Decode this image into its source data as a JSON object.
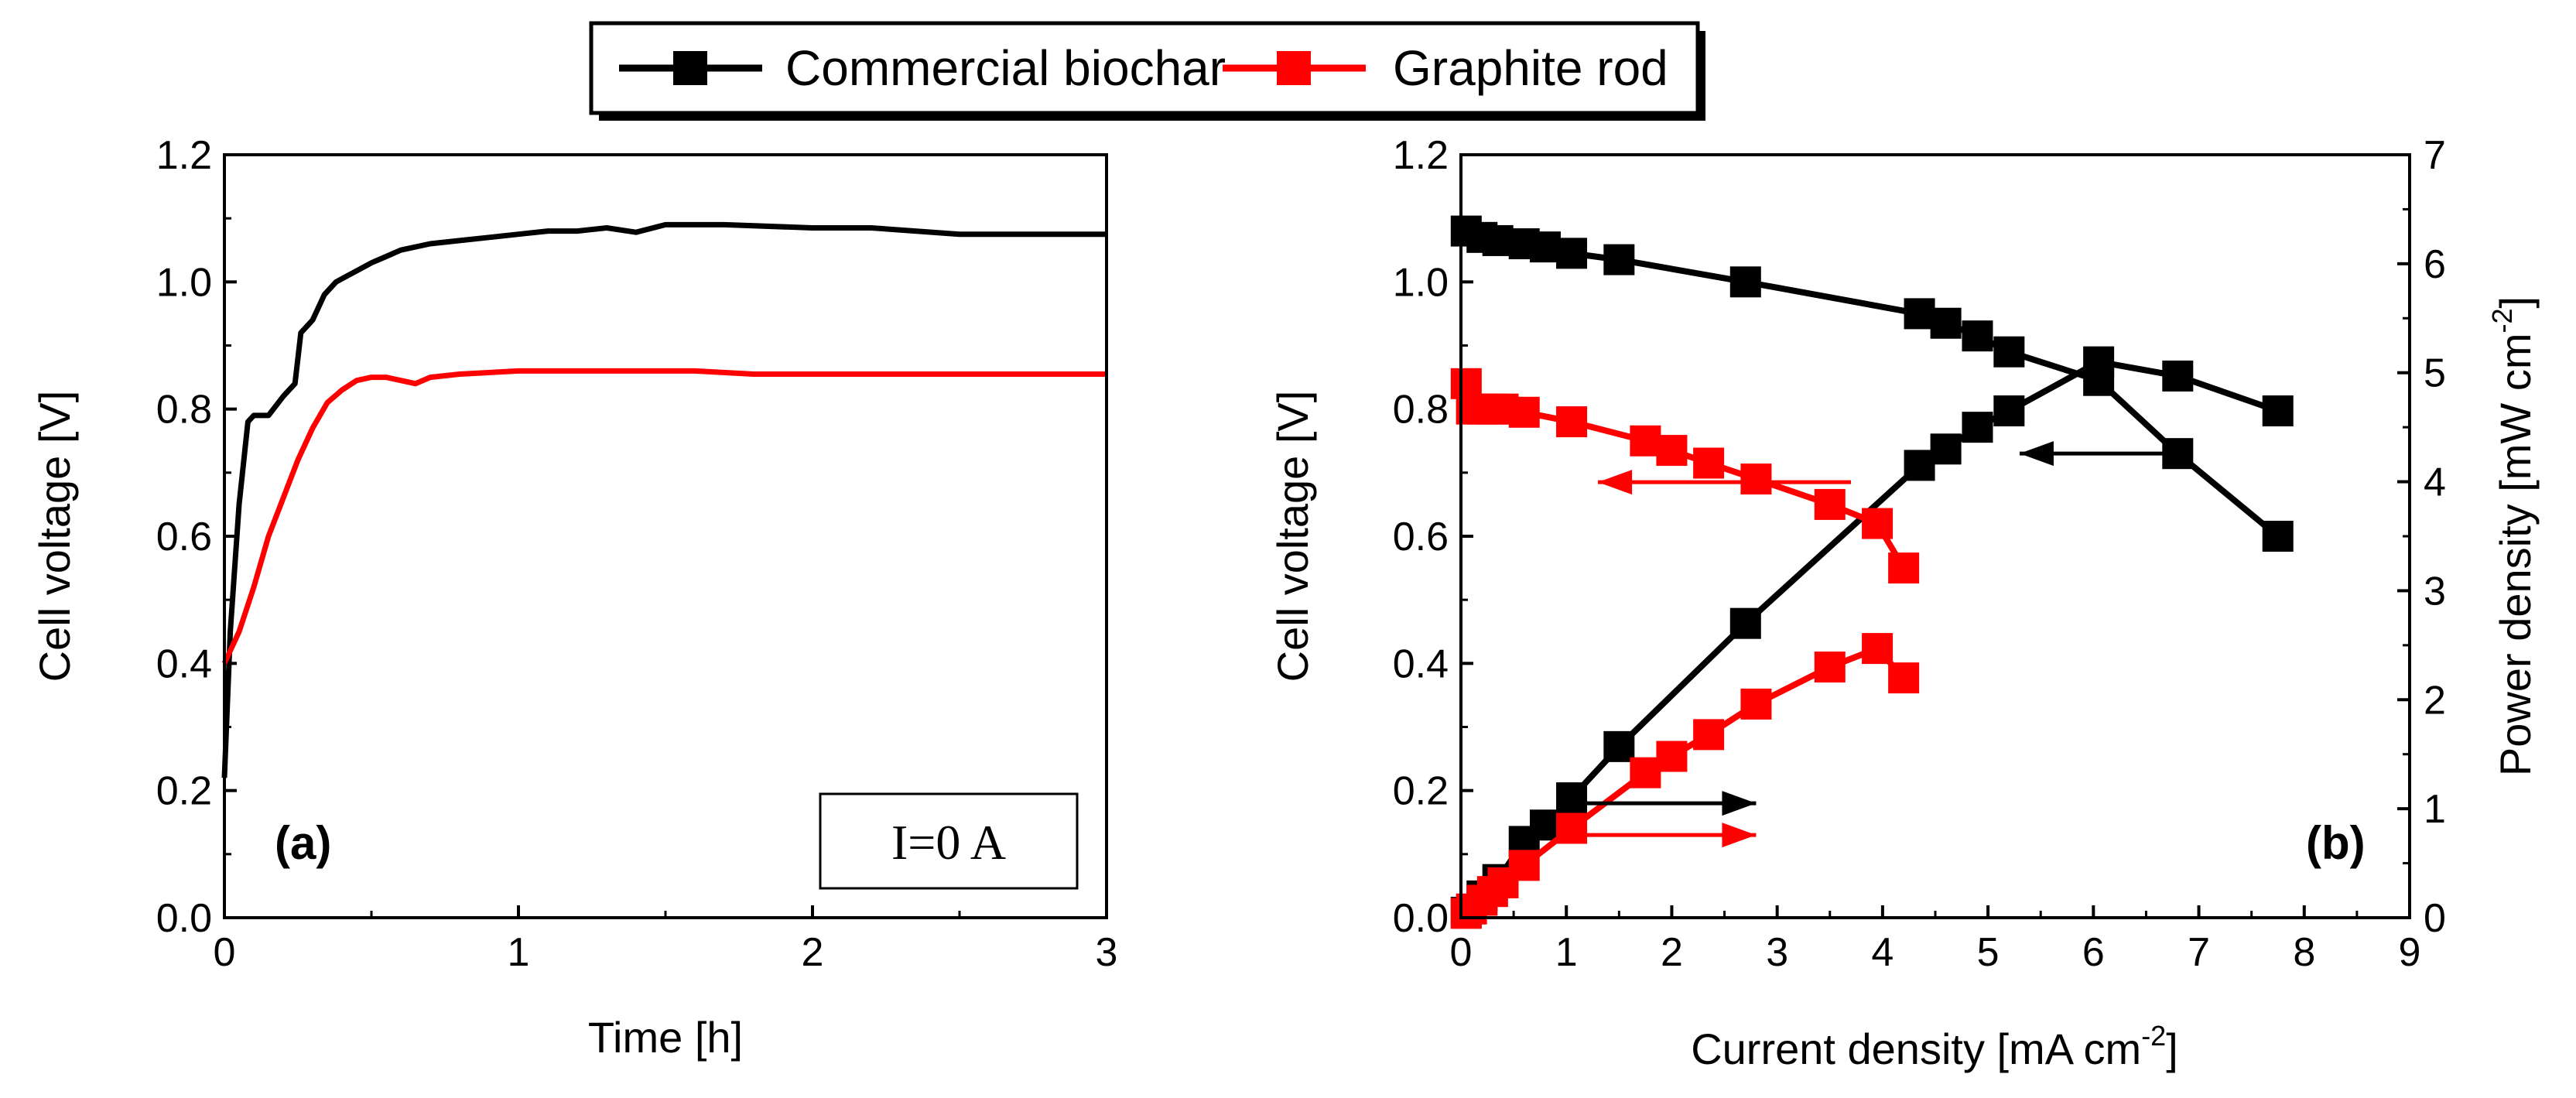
{
  "legend": {
    "entries": [
      {
        "label": "Commercial biochar",
        "color": "#000000"
      },
      {
        "label": "Graphite rod",
        "color": "#ff0000"
      }
    ]
  },
  "chart_data": [
    {
      "type": "line",
      "panel_label": "(a)",
      "annotation": "I=0 A",
      "xlabel": "Time [h]",
      "ylabel": "Cell voltage [V]",
      "xlim": [
        0,
        3
      ],
      "ylim": [
        0,
        1.2
      ],
      "xticks": [
        0,
        1,
        2,
        3
      ],
      "yticks": [
        0.0,
        0.2,
        0.4,
        0.6,
        0.8,
        1.0,
        1.2
      ],
      "series": [
        {
          "legend_index": 0,
          "color": "#000000",
          "x": [
            0,
            0.02,
            0.05,
            0.08,
            0.1,
            0.15,
            0.2,
            0.24,
            0.26,
            0.3,
            0.34,
            0.38,
            0.42,
            0.46,
            0.5,
            0.55,
            0.6,
            0.7,
            0.8,
            0.9,
            1.0,
            1.1,
            1.2,
            1.3,
            1.4,
            1.5,
            1.7,
            2.0,
            2.2,
            2.5,
            3.0
          ],
          "y": [
            0.22,
            0.45,
            0.65,
            0.78,
            0.79,
            0.79,
            0.82,
            0.84,
            0.92,
            0.94,
            0.98,
            1.0,
            1.01,
            1.02,
            1.03,
            1.04,
            1.05,
            1.06,
            1.065,
            1.07,
            1.075,
            1.08,
            1.08,
            1.085,
            1.078,
            1.09,
            1.09,
            1.085,
            1.085,
            1.075,
            1.075
          ]
        },
        {
          "legend_index": 1,
          "color": "#ff0000",
          "x": [
            0,
            0.05,
            0.1,
            0.15,
            0.2,
            0.25,
            0.3,
            0.35,
            0.4,
            0.45,
            0.5,
            0.55,
            0.6,
            0.65,
            0.7,
            0.8,
            1.0,
            1.2,
            1.4,
            1.6,
            1.8,
            2.0,
            2.2,
            2.5,
            2.8,
            3.0
          ],
          "y": [
            0.4,
            0.45,
            0.52,
            0.6,
            0.66,
            0.72,
            0.77,
            0.81,
            0.83,
            0.845,
            0.85,
            0.85,
            0.845,
            0.84,
            0.85,
            0.855,
            0.86,
            0.86,
            0.86,
            0.86,
            0.855,
            0.855,
            0.855,
            0.855,
            0.855,
            0.855
          ]
        }
      ]
    },
    {
      "type": "line",
      "panel_label": "(b)",
      "xlabel": "Current density [mA cm",
      "xlabel_sup": "-2",
      "xlabel_end": "]",
      "ylabel": "Cell voltage [V]",
      "y2label": "Power density [mW cm",
      "y2label_sup": "-2",
      "y2label_end": "]",
      "xlim": [
        0,
        9
      ],
      "ylim": [
        0,
        1.2
      ],
      "y2lim": [
        0,
        7
      ],
      "xticks": [
        0,
        1,
        2,
        3,
        4,
        5,
        6,
        7,
        8,
        9
      ],
      "yticks": [
        0.0,
        0.2,
        0.4,
        0.6,
        0.8,
        1.0,
        1.2
      ],
      "y2ticks": [
        0,
        1,
        2,
        3,
        4,
        5,
        6,
        7
      ],
      "series": [
        {
          "legend_index": 0,
          "color": "#000000",
          "axis": "left",
          "x": [
            0.05,
            0.2,
            0.35,
            0.6,
            0.8,
            1.05,
            1.5,
            2.7,
            4.35,
            4.6,
            4.9,
            5.2,
            6.05,
            6.8,
            7.75
          ],
          "y": [
            1.08,
            1.07,
            1.065,
            1.06,
            1.055,
            1.045,
            1.035,
            1.0,
            0.95,
            0.935,
            0.915,
            0.89,
            0.845,
            0.73,
            0.6
          ]
        },
        {
          "legend_index": 0,
          "color": "#000000",
          "axis": "right",
          "x": [
            0.05,
            0.2,
            0.35,
            0.6,
            0.8,
            1.05,
            1.5,
            2.7,
            4.35,
            4.6,
            4.9,
            5.2,
            6.05,
            6.8,
            7.75
          ],
          "y": [
            0.05,
            0.2,
            0.35,
            0.7,
            0.85,
            1.1,
            1.57,
            2.7,
            4.15,
            4.3,
            4.5,
            4.65,
            5.1,
            4.97,
            4.65
          ]
        },
        {
          "legend_index": 1,
          "color": "#ff0000",
          "axis": "left",
          "x": [
            0.05,
            0.1,
            0.2,
            0.3,
            0.4,
            0.6,
            1.05,
            1.75,
            2.0,
            2.35,
            2.8,
            3.5,
            3.95,
            4.2
          ],
          "y": [
            0.84,
            0.8,
            0.8,
            0.8,
            0.8,
            0.795,
            0.78,
            0.75,
            0.735,
            0.715,
            0.69,
            0.65,
            0.62,
            0.55
          ]
        },
        {
          "legend_index": 1,
          "color": "#ff0000",
          "axis": "right",
          "x": [
            0.05,
            0.1,
            0.2,
            0.3,
            0.4,
            0.6,
            1.05,
            1.75,
            2.0,
            2.35,
            2.8,
            3.5,
            3.95,
            4.2
          ],
          "y": [
            0.04,
            0.08,
            0.16,
            0.24,
            0.32,
            0.48,
            0.82,
            1.33,
            1.48,
            1.68,
            1.96,
            2.3,
            2.47,
            2.2
          ]
        }
      ],
      "arrows": [
        {
          "color": "#000000",
          "direction": "left",
          "x_from": 6.7,
          "x_to": 5.3,
          "y": 0.73
        },
        {
          "color": "#ff0000",
          "direction": "left",
          "x_from": 3.7,
          "x_to": 1.3,
          "y": 0.685
        },
        {
          "color": "#000000",
          "direction": "right",
          "x_from": 1.0,
          "x_to": 2.8,
          "y": 0.18
        },
        {
          "color": "#ff0000",
          "direction": "right",
          "x_from": 1.0,
          "x_to": 2.8,
          "y": 0.13
        }
      ]
    }
  ]
}
